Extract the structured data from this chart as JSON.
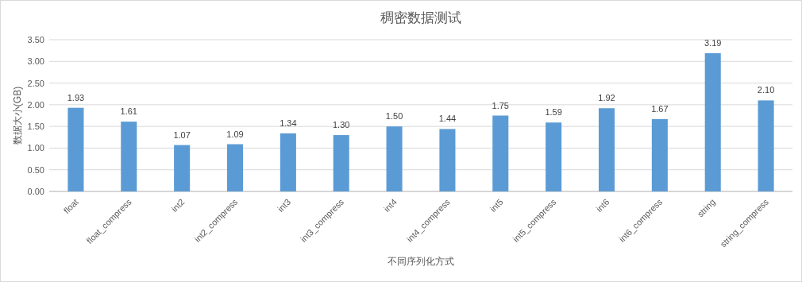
{
  "chart_data": {
    "type": "bar",
    "title": "稠密数据测试",
    "xlabel": "不同序列化方式",
    "ylabel": "数据大小(GB)",
    "categories": [
      "float",
      "float_compress",
      "int2",
      "int2_compress",
      "int3",
      "int3_compress",
      "int4",
      "int4_compress",
      "int5",
      "int5_compress",
      "int6",
      "int6_compress",
      "string",
      "string_compress"
    ],
    "values": [
      1.93,
      1.61,
      1.07,
      1.09,
      1.34,
      1.3,
      1.5,
      1.44,
      1.75,
      1.59,
      1.92,
      1.67,
      3.19,
      2.1
    ],
    "value_labels": [
      "1.93",
      "1.61",
      "1.07",
      "1.09",
      "1.34",
      "1.30",
      "1.50",
      "1.44",
      "1.75",
      "1.59",
      "1.92",
      "1.67",
      "3.19",
      "2.10"
    ],
    "color": "#5b9bd5",
    "ylim": [
      0,
      3.5
    ],
    "yticks": [
      {
        "value": 0,
        "label": "0.00"
      },
      {
        "value": 0.5,
        "label": "0.50"
      },
      {
        "value": 1,
        "label": "1.00"
      },
      {
        "value": 1.5,
        "label": "1.50"
      },
      {
        "value": 2,
        "label": "2.00"
      },
      {
        "value": 2.5,
        "label": "2.50"
      },
      {
        "value": 3,
        "label": "3.00"
      },
      {
        "value": 3.5,
        "label": "3.50"
      }
    ],
    "grid": "y"
  }
}
